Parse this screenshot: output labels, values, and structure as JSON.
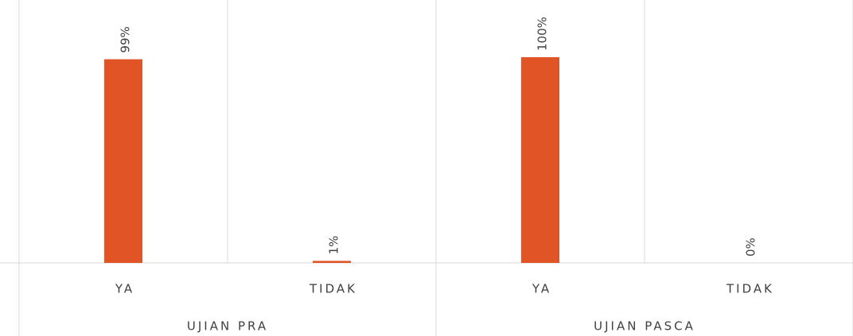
{
  "chart_data": {
    "type": "bar",
    "categories": [
      "YA",
      "TIDAK",
      "YA",
      "TIDAK"
    ],
    "groups": [
      "UJIAN PRA",
      "UJIAN PASCA"
    ],
    "values": [
      99,
      1,
      100,
      0
    ],
    "value_labels": [
      "99%",
      "1%",
      "100%",
      "0%"
    ],
    "color": "#e05426"
  }
}
